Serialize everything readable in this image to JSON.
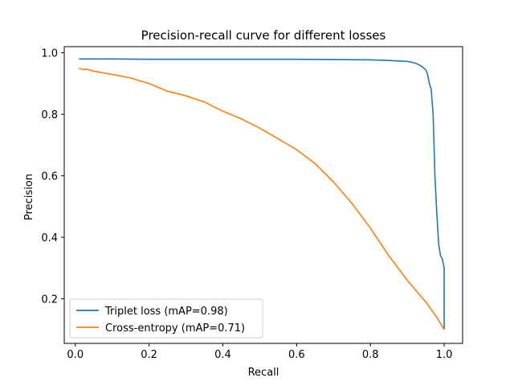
{
  "chart_data": {
    "type": "line",
    "title": "Precision-recall curve for different losses",
    "xlabel": "Recall",
    "ylabel": "Precision",
    "xlim": [
      -0.03,
      1.05
    ],
    "ylim": [
      0.055,
      1.02
    ],
    "xticks": [
      0.0,
      0.2,
      0.4,
      0.6,
      0.8,
      1.0
    ],
    "xtick_labels": [
      "0.0",
      "0.2",
      "0.4",
      "0.6",
      "0.8",
      "1.0"
    ],
    "yticks": [
      0.2,
      0.4,
      0.6,
      0.8,
      1.0
    ],
    "ytick_labels": [
      "0.2",
      "0.4",
      "0.6",
      "0.8",
      "1.0"
    ],
    "grid": false,
    "legend_position": "lower-left",
    "series": [
      {
        "name": "Triplet loss (mAP=0.98)",
        "color": "#1f77b4",
        "x": [
          0.01,
          0.1,
          0.2,
          0.3,
          0.4,
          0.5,
          0.6,
          0.7,
          0.8,
          0.85,
          0.88,
          0.9,
          0.92,
          0.93,
          0.94,
          0.95,
          0.955,
          0.96,
          0.965,
          0.97,
          0.975,
          0.98,
          0.985,
          0.99,
          0.995,
          1.0,
          1.0
        ],
        "y": [
          0.98,
          0.98,
          0.979,
          0.979,
          0.979,
          0.979,
          0.979,
          0.978,
          0.977,
          0.975,
          0.973,
          0.972,
          0.967,
          0.962,
          0.955,
          0.945,
          0.93,
          0.9,
          0.88,
          0.8,
          0.6,
          0.48,
          0.38,
          0.34,
          0.33,
          0.3,
          0.1
        ]
      },
      {
        "name": "Cross-entropy (mAP=0.71)",
        "color": "#ff7f0e",
        "x": [
          0.01,
          0.02,
          0.03,
          0.05,
          0.1,
          0.15,
          0.2,
          0.25,
          0.3,
          0.35,
          0.4,
          0.45,
          0.5,
          0.55,
          0.6,
          0.65,
          0.7,
          0.75,
          0.8,
          0.85,
          0.9,
          0.95,
          0.98,
          1.0
        ],
        "y": [
          0.95,
          0.945,
          0.947,
          0.94,
          0.93,
          0.918,
          0.9,
          0.875,
          0.86,
          0.84,
          0.81,
          0.785,
          0.755,
          0.72,
          0.685,
          0.64,
          0.58,
          0.51,
          0.43,
          0.34,
          0.26,
          0.19,
          0.14,
          0.1
        ]
      }
    ]
  }
}
